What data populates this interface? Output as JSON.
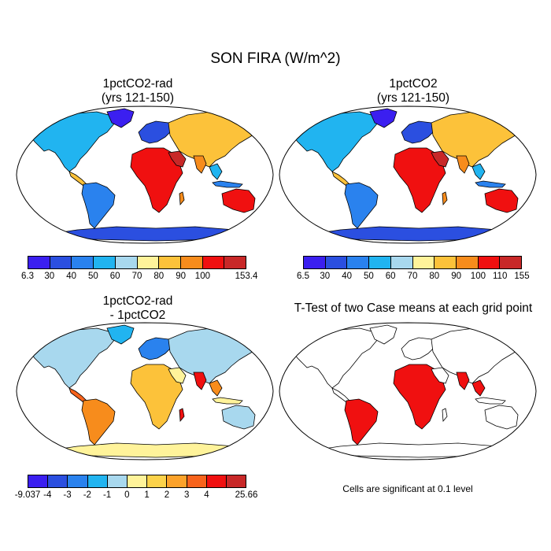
{
  "title": "SON FIRA (W/m^2)",
  "panels": {
    "p1": {
      "line1": "1pctCO2-rad",
      "line2": "(yrs 121-150)"
    },
    "p2": {
      "line1": "1pctCO2",
      "line2": "(yrs 121-150)"
    },
    "p3": {
      "line1": "1pctCO2-rad",
      "line2": "- 1pctCO2"
    },
    "p4": {
      "line1": "T-Test of two Case means at each grid point"
    }
  },
  "colorbars": {
    "cb1": {
      "labels": [
        "6.3",
        "30",
        "40",
        "50",
        "60",
        "70",
        "80",
        "90",
        "100",
        "153.4"
      ],
      "colors": [
        "#3b1ff0",
        "#2b4fe0",
        "#2a82ee",
        "#21b4f0",
        "#a8d8ee",
        "#fff39a",
        "#fcc23a",
        "#f78c1c",
        "#f01010",
        "#c82828"
      ]
    },
    "cb2": {
      "labels": [
        "6.5",
        "30",
        "40",
        "50",
        "60",
        "70",
        "80",
        "90",
        "100",
        "110",
        "155"
      ],
      "colors": [
        "#3b1ff0",
        "#2b4fe0",
        "#2a82ee",
        "#21b4f0",
        "#a8d8ee",
        "#fff39a",
        "#fcc23a",
        "#f78c1c",
        "#f01010",
        "#c82828"
      ]
    },
    "cb3": {
      "labels": [
        "-9.037",
        "-4",
        "-3",
        "-2",
        "-1",
        "0",
        "1",
        "2",
        "3",
        "4",
        "25.66"
      ],
      "colors": [
        "#3b1ff0",
        "#2b4fe0",
        "#2a82ee",
        "#21b4f0",
        "#a8d8ee",
        "#fff39a",
        "#fcd24a",
        "#fca22a",
        "#f7631c",
        "#f01010",
        "#c82828"
      ]
    }
  },
  "note": "Cells are significant at 0.1 level"
}
